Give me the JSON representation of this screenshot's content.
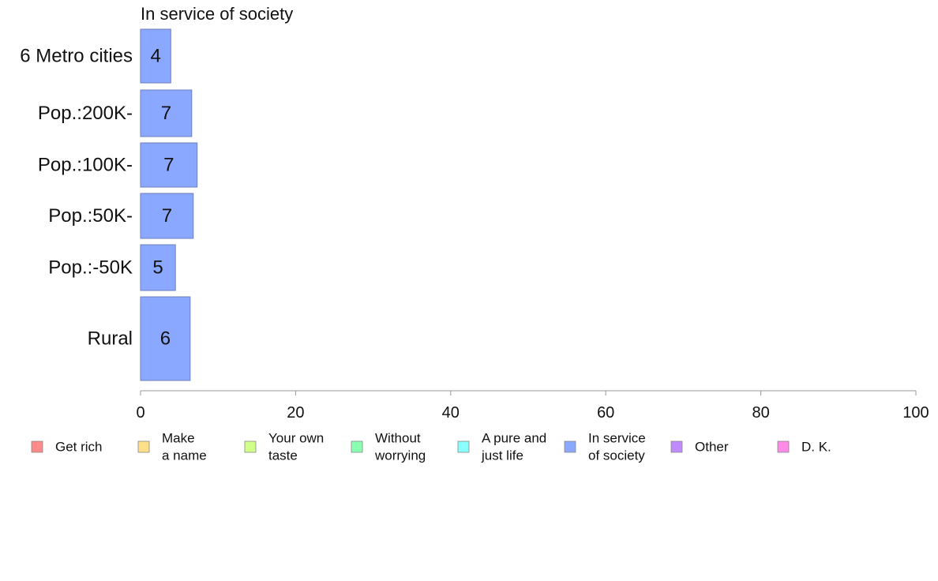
{
  "chart_data": {
    "type": "bar",
    "orientation": "horizontal",
    "title": "In service of society",
    "categories": [
      "6 Metro cities",
      "Pop.:200K-",
      "Pop.:100K-",
      "Pop.:50K-",
      "Pop.:-50K",
      "Rural"
    ],
    "series": [
      {
        "name": "In service of society",
        "values": [
          3.9,
          6.6,
          7.3,
          6.8,
          4.5,
          6.4
        ],
        "labels": [
          "4",
          "7",
          "7",
          "7",
          "5",
          "6"
        ],
        "color": "#8aa8ff"
      }
    ],
    "xlim": [
      0,
      100
    ],
    "xticks": [
      0,
      20,
      40,
      60,
      80,
      100
    ],
    "xlabel": "",
    "ylabel": "",
    "grid": false,
    "legend": {
      "position": "bottom",
      "items": [
        {
          "lines": [
            "Get rich"
          ],
          "color": "#ff8a8a"
        },
        {
          "lines": [
            "Make",
            "a name"
          ],
          "color": "#ffe08a"
        },
        {
          "lines": [
            "Your own",
            "taste"
          ],
          "color": "#d0ff8a"
        },
        {
          "lines": [
            "Without",
            "worrying"
          ],
          "color": "#8affb0"
        },
        {
          "lines": [
            "A pure and",
            "just life"
          ],
          "color": "#8affff"
        },
        {
          "lines": [
            "In service",
            "of society"
          ],
          "color": "#8aa8ff"
        },
        {
          "lines": [
            "Other"
          ],
          "color": "#c08aff"
        },
        {
          "lines": [
            "D. K."
          ],
          "color": "#ff8ae8"
        }
      ]
    }
  }
}
